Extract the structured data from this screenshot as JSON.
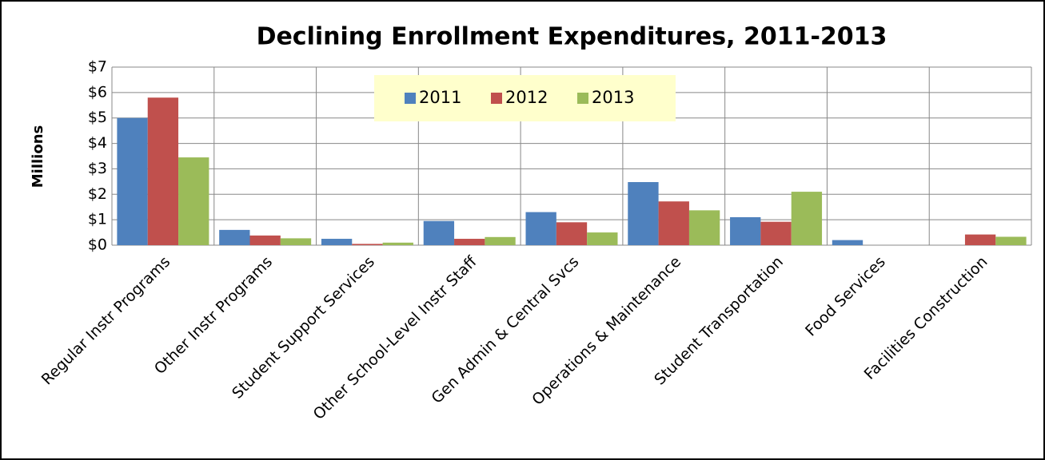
{
  "chart_data": {
    "type": "bar",
    "title": "Declining Enrollment Expenditures, 2011-2013",
    "y_label": "Millions",
    "categories": [
      "Regular Instr Programs",
      "Other Instr Programs",
      "Student Support Services",
      "Other School-Level Instr Staff",
      "Gen Admin & Central Svcs",
      "Operations & Maintenance",
      "Student Transportation",
      "Food Services",
      "Facilities Construction"
    ],
    "series": [
      {
        "name": "2011",
        "color": "#4f81bd",
        "values": [
          5.0,
          0.6,
          0.25,
          0.95,
          1.3,
          2.48,
          1.1,
          0.2,
          0
        ]
      },
      {
        "name": "2012",
        "color": "#c0504d",
        "values": [
          5.8,
          0.38,
          0.05,
          0.25,
          0.9,
          1.72,
          0.92,
          0,
          0.42
        ]
      },
      {
        "name": "2013",
        "color": "#9bbb59",
        "values": [
          3.45,
          0.27,
          0.1,
          0.32,
          0.5,
          1.37,
          2.1,
          0,
          0.33
        ]
      }
    ],
    "ylim": [
      0,
      7
    ],
    "yticks": [
      {
        "value": 0,
        "label": "$0"
      },
      {
        "value": 1,
        "label": "$1"
      },
      {
        "value": 2,
        "label": "$2"
      },
      {
        "value": 3,
        "label": "$3"
      },
      {
        "value": 4,
        "label": "$4"
      },
      {
        "value": 5,
        "label": "$5"
      },
      {
        "value": 6,
        "label": "$6"
      },
      {
        "value": 7,
        "label": "$7"
      }
    ],
    "grid": true,
    "legend": "top"
  }
}
